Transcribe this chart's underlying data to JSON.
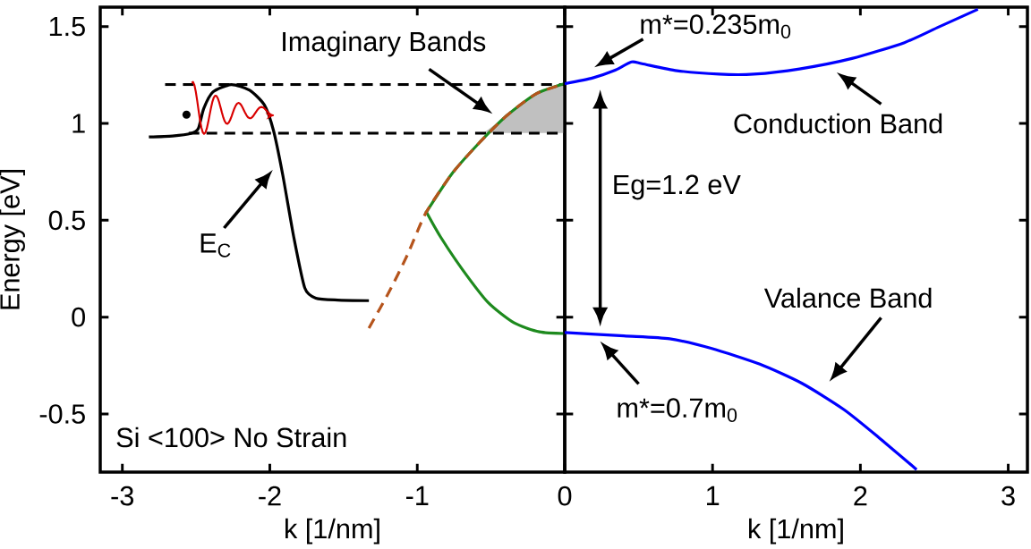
{
  "chart_data": [
    {
      "type": "line",
      "xlabel": "k [1/nm]",
      "ylabel": "Energy [eV]",
      "xlim": [
        -3.15,
        0
      ],
      "ylim": [
        -0.8,
        1.6
      ],
      "xticks": [
        -3,
        -2,
        -1
      ],
      "yticks": [
        {
          "value": -0.5,
          "label": "-0.5"
        },
        {
          "value": 0,
          "label": "0"
        },
        {
          "value": 0.5,
          "label": "0.5"
        },
        {
          "value": 1,
          "label": "1"
        },
        {
          "value": 1.5,
          "label": "1.5"
        }
      ],
      "grid": false,
      "series": [
        {
          "type": "area",
          "color": "#c0c0c0",
          "x": [
            -0.55,
            -0.395,
            -0.196,
            0,
            0,
            -0.55
          ],
          "values": [
            0.95,
            1.039,
            1.152,
            1.205,
            0.95,
            0.95
          ]
        },
        {
          "color": "#000000",
          "line_style": "solid",
          "x": [
            -2.82,
            -2.66,
            -2.535,
            -2.485,
            -2.448,
            -2.386,
            -2.262,
            -2.137,
            -2.037,
            -1.975,
            -1.913,
            -1.838,
            -1.763,
            -1.688,
            -1.54,
            -1.328
          ],
          "values": [
            0.93,
            0.935,
            0.948,
            0.973,
            1.077,
            1.162,
            1.2,
            1.171,
            1.095,
            0.963,
            0.737,
            0.415,
            0.151,
            0.098,
            0.088,
            0.085
          ]
        },
        {
          "color": "#000000",
          "line_style": "dashed",
          "x": [
            -2.71,
            0
          ],
          "values": [
            1.2,
            1.2
          ]
        },
        {
          "color": "#000000",
          "line_style": "dashed",
          "x": [
            -2.55,
            0
          ],
          "values": [
            0.95,
            0.95
          ]
        },
        {
          "color": "#1e8a1e",
          "line_style": "solid",
          "x": [
            -0.942,
            -0.768,
            -0.594,
            -0.395,
            -0.196,
            0
          ],
          "values": [
            0.538,
            0.737,
            0.888,
            1.039,
            1.152,
            1.205
          ]
        },
        {
          "color": "#1e8a1e",
          "line_style": "solid",
          "x": [
            -0.942,
            -0.843,
            -0.693,
            -0.519,
            -0.345,
            -0.171,
            0
          ],
          "values": [
            0.548,
            0.415,
            0.245,
            0.075,
            -0.029,
            -0.076,
            -0.085
          ]
        },
        {
          "color": "#b5541c",
          "line_style": "dashed",
          "x": [
            -1.328,
            -1.19,
            -1.067,
            -0.942,
            -0.768,
            -0.594,
            -0.395,
            -0.196,
            0
          ],
          "values": [
            -0.057,
            0.132,
            0.321,
            0.538,
            0.737,
            0.888,
            1.039,
            1.152,
            1.205
          ]
        }
      ],
      "annotations": [
        "Imaginary Bands",
        "E$_{C}$",
        "Si <100> No Strain"
      ]
    },
    {
      "type": "line",
      "xlabel": "k [1/nm]",
      "xlim": [
        0,
        3.13
      ],
      "ylim": [
        -0.8,
        1.6
      ],
      "xticks": [
        0,
        1,
        2,
        3
      ],
      "yticks": [
        {
          "value": -0.5,
          "label": null
        },
        {
          "value": 0,
          "label": null
        },
        {
          "value": 0.5,
          "label": null
        },
        {
          "value": 1,
          "label": null
        },
        {
          "value": 1.5,
          "label": null
        }
      ],
      "tick_labels": "x",
      "grid": false,
      "series": [
        {
          "color": "#0000ff",
          "line_style": "solid",
          "x": [
            0,
            0.19,
            0.333,
            0.452,
            0.523,
            0.76,
            1.044,
            1.28,
            1.588,
            1.943,
            2.298,
            2.534,
            2.795
          ],
          "values": [
            1.205,
            1.235,
            1.272,
            1.317,
            1.308,
            1.272,
            1.254,
            1.254,
            1.281,
            1.335,
            1.417,
            1.499,
            1.589
          ]
        },
        {
          "color": "#0000ff",
          "line_style": "solid",
          "x": [
            0,
            0.4,
            0.71,
            0.99,
            1.32,
            1.605,
            1.89,
            2.127,
            2.38
          ],
          "values": [
            -0.079,
            -0.097,
            -0.112,
            -0.161,
            -0.243,
            -0.342,
            -0.478,
            -0.623,
            -0.787
          ]
        }
      ],
      "annotations": [
        "m*=0.235m$_{0}$",
        "Conduction Band",
        "Valance Band",
        "m*=0.7m$_{0}$",
        "Eg=1.2 eV"
      ]
    }
  ]
}
